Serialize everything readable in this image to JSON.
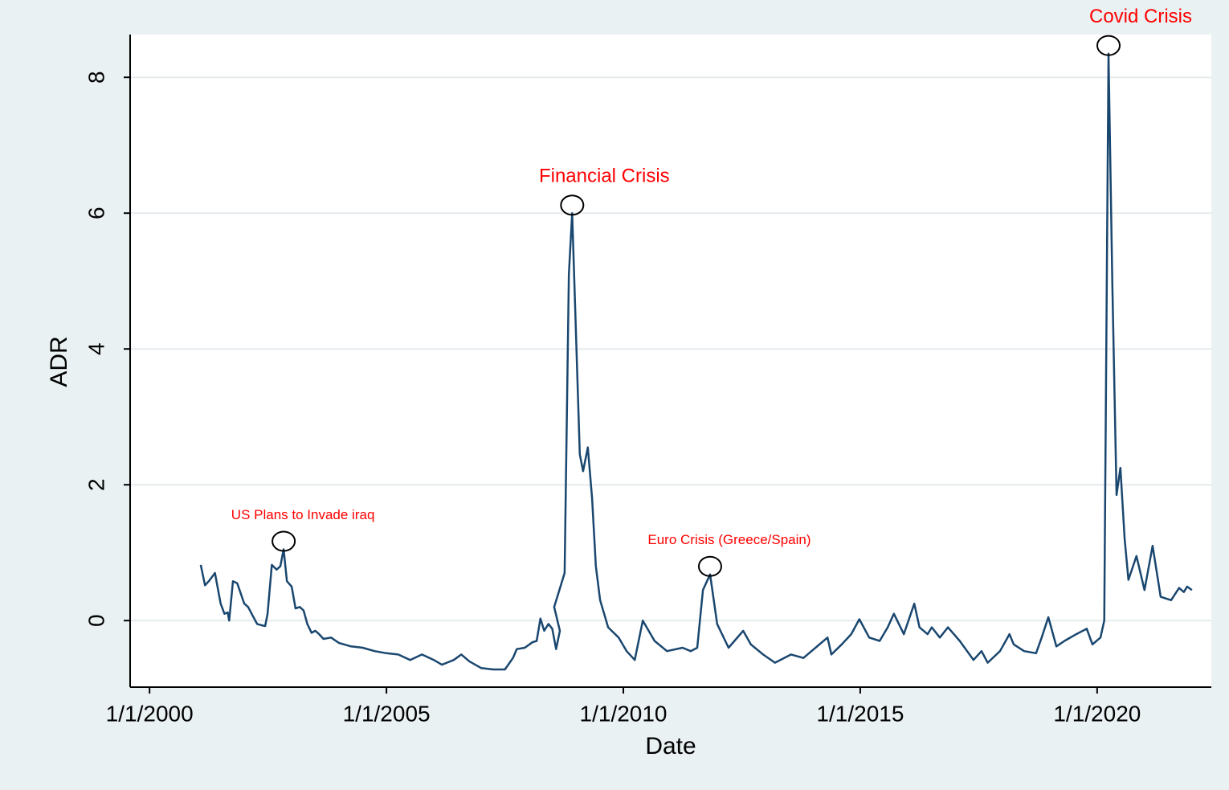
{
  "chart_data": {
    "type": "line",
    "xlabel": "Date",
    "ylabel": "ADR",
    "xlim": [
      1999.59,
      2022.41
    ],
    "ylim": [
      -0.98,
      8.63
    ],
    "xticks": [
      {
        "value": 2000,
        "label": "1/1/2000"
      },
      {
        "value": 2005,
        "label": "1/1/2005"
      },
      {
        "value": 2010,
        "label": "1/1/2010"
      },
      {
        "value": 2015,
        "label": "1/1/2015"
      },
      {
        "value": 2020,
        "label": "1/1/2020"
      }
    ],
    "yticks": [
      0,
      2,
      4,
      6,
      8
    ],
    "grid": true,
    "x": [
      2001.08,
      2001.17,
      2001.25,
      2001.38,
      2001.5,
      2001.58,
      2001.65,
      2001.68,
      2001.76,
      2001.85,
      2002.0,
      2002.08,
      2002.17,
      2002.27,
      2002.37,
      2002.44,
      2002.49,
      2002.58,
      2002.68,
      2002.76,
      2002.83,
      2002.9,
      2003.0,
      2003.08,
      2003.17,
      2003.25,
      2003.33,
      2003.42,
      2003.5,
      2003.58,
      2003.67,
      2003.83,
      2004.0,
      2004.25,
      2004.5,
      2004.75,
      2005.0,
      2005.25,
      2005.5,
      2005.75,
      2006.0,
      2006.17,
      2006.42,
      2006.58,
      2006.75,
      2007.0,
      2007.25,
      2007.5,
      2007.67,
      2007.75,
      2007.92,
      2008.08,
      2008.17,
      2008.25,
      2008.33,
      2008.42,
      2008.5,
      2008.58,
      2008.66,
      2008.54,
      2008.76,
      2008.85,
      2008.92,
      2009.08,
      2009.15,
      2009.25,
      2009.34,
      2009.42,
      2009.51,
      2009.68,
      2009.9,
      2010.07,
      2010.24,
      2010.41,
      2010.66,
      2010.92,
      2011.25,
      2011.42,
      2011.56,
      2011.68,
      2011.83,
      2011.98,
      2012.22,
      2012.53,
      2012.69,
      2012.95,
      2013.2,
      2013.54,
      2013.8,
      2014.31,
      2014.39,
      2014.61,
      2014.81,
      2014.98,
      2015.19,
      2015.41,
      2015.58,
      2015.71,
      2015.92,
      2016.14,
      2016.25,
      2016.42,
      2016.51,
      2016.68,
      2016.85,
      2017.1,
      2017.39,
      2017.56,
      2017.69,
      2017.95,
      2018.15,
      2018.24,
      2018.46,
      2018.71,
      2018.83,
      2018.97,
      2019.14,
      2019.31,
      2019.56,
      2019.78,
      2019.9,
      2020.07,
      2020.15,
      2020.24,
      2020.32,
      2020.41,
      2020.49,
      2020.58,
      2020.66,
      2020.83,
      2021.0,
      2021.17,
      2021.34,
      2021.56,
      2021.73,
      2021.83,
      2021.9,
      2022.0
    ],
    "series": [
      {
        "name": "ADR",
        "color": "#1a476f",
        "values": [
          0.82,
          0.52,
          0.58,
          0.7,
          0.25,
          0.1,
          0.12,
          0.0,
          0.58,
          0.55,
          0.25,
          0.2,
          0.08,
          -0.05,
          -0.07,
          -0.08,
          0.1,
          0.82,
          0.75,
          0.8,
          1.05,
          0.58,
          0.5,
          0.18,
          0.2,
          0.15,
          -0.05,
          -0.18,
          -0.15,
          -0.2,
          -0.27,
          -0.25,
          -0.33,
          -0.38,
          -0.4,
          -0.45,
          -0.48,
          -0.5,
          -0.58,
          -0.5,
          -0.58,
          -0.65,
          -0.58,
          -0.5,
          -0.6,
          -0.7,
          -0.72,
          -0.72,
          -0.55,
          -0.42,
          -0.4,
          -0.32,
          -0.3,
          0.03,
          -0.15,
          -0.05,
          -0.12,
          -0.42,
          -0.15,
          0.2,
          0.7,
          5.1,
          6.0,
          2.45,
          2.2,
          2.55,
          1.8,
          0.8,
          0.3,
          -0.1,
          -0.25,
          -0.45,
          -0.58,
          0.0,
          -0.3,
          -0.45,
          -0.4,
          -0.45,
          -0.4,
          0.45,
          0.68,
          -0.05,
          -0.4,
          -0.15,
          -0.35,
          -0.5,
          -0.62,
          -0.5,
          -0.55,
          -0.25,
          -0.5,
          -0.35,
          -0.2,
          0.02,
          -0.25,
          -0.3,
          -0.1,
          0.1,
          -0.2,
          0.25,
          -0.1,
          -0.2,
          -0.1,
          -0.25,
          -0.1,
          -0.3,
          -0.58,
          -0.45,
          -0.62,
          -0.45,
          -0.2,
          -0.35,
          -0.45,
          -0.48,
          -0.25,
          0.05,
          -0.38,
          -0.3,
          -0.2,
          -0.12,
          -0.35,
          -0.25,
          0.0,
          8.35,
          5.0,
          1.85,
          2.25,
          1.2,
          0.6,
          0.95,
          0.45,
          1.1,
          0.35,
          0.3,
          0.48,
          0.42,
          0.5,
          0.45
        ]
      }
    ],
    "annotations": [
      {
        "text": "US Plans to Invade iraq",
        "x": 2002.83,
        "y": 1.05
      },
      {
        "text": "Financial Crisis",
        "x": 2008.92,
        "y": 6.0
      },
      {
        "text": "Euro Crisis (Greece/Spain)",
        "x": 2011.83,
        "y": 0.68
      },
      {
        "text": "Covid Crisis",
        "x": 2020.24,
        "y": 8.35
      }
    ]
  }
}
